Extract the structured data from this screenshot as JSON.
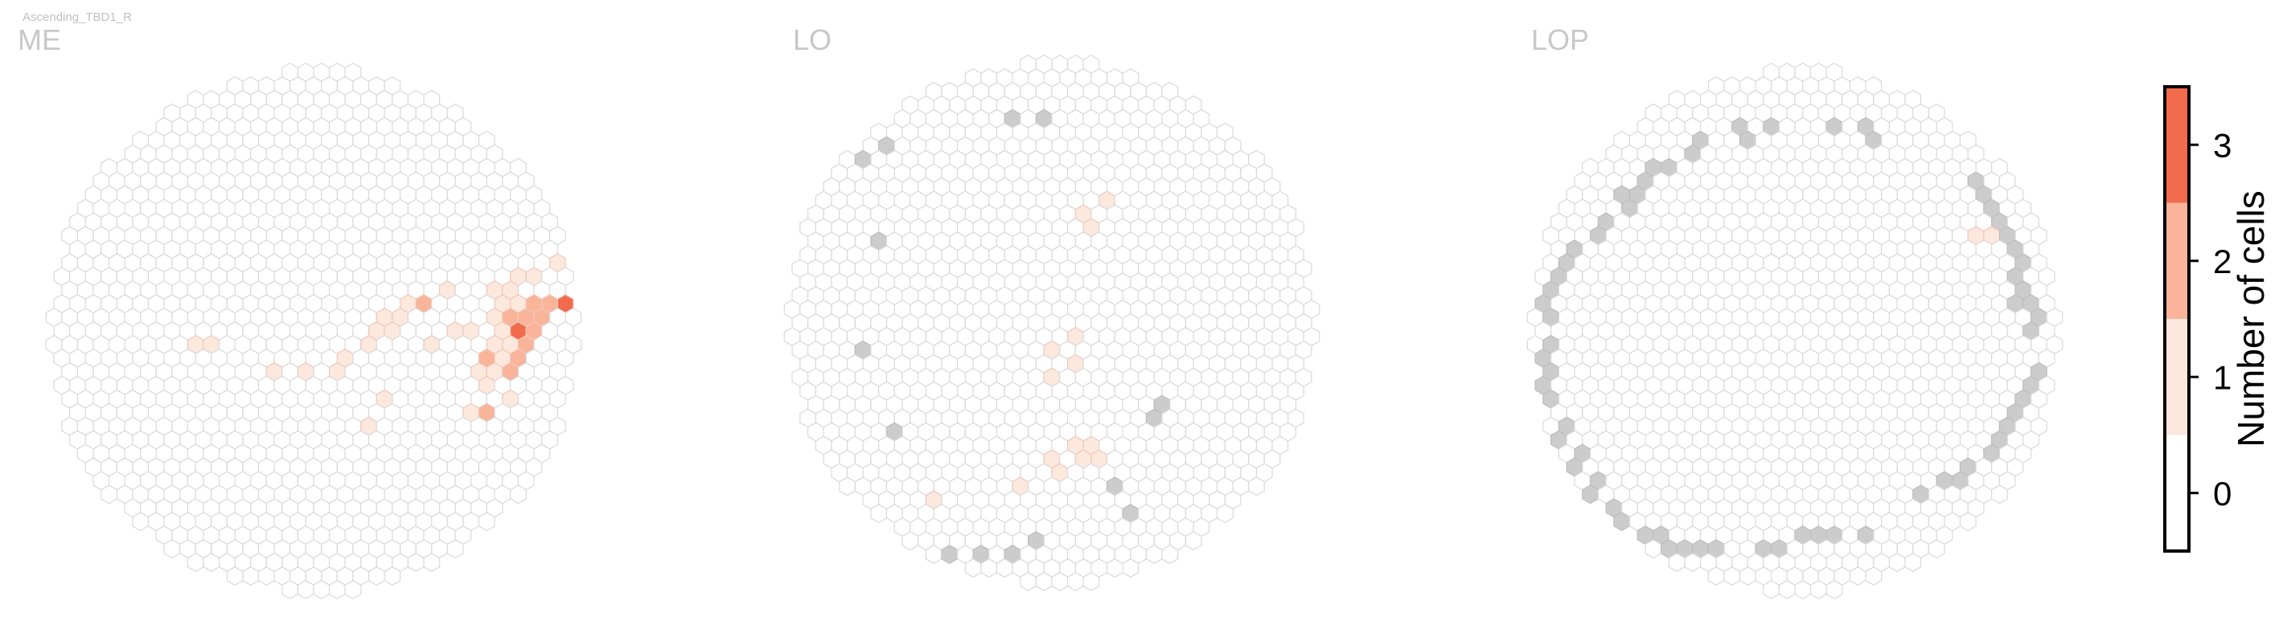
{
  "figure": {
    "top_label": "Ascending_TBD1_R"
  },
  "chart_data": {
    "type": "heatmap",
    "description_note": "",
    "panels": [
      {
        "name": "ME",
        "cells": [
          [
            11,
            4,
            1
          ],
          [
            11,
            3,
            1
          ],
          [
            11,
            2,
            1
          ],
          [
            12,
            3,
            1
          ],
          [
            12,
            2,
            1
          ],
          [
            12,
            1,
            1
          ],
          [
            13,
            2,
            2
          ],
          [
            13,
            1,
            2
          ],
          [
            13,
            0,
            3
          ],
          [
            14,
            0,
            2
          ],
          [
            14,
            -1,
            2
          ],
          [
            15,
            -2,
            1
          ],
          [
            16,
            -2,
            2
          ],
          [
            16,
            -3,
            2
          ],
          [
            17,
            -4,
            2
          ],
          [
            18,
            -4,
            2
          ],
          [
            18,
            -5,
            2
          ],
          [
            18,
            -6,
            2
          ],
          [
            17,
            -6,
            2
          ],
          [
            16,
            -5,
            1
          ],
          [
            15,
            -5,
            1
          ],
          [
            14,
            -4,
            1
          ],
          [
            13,
            -4,
            1
          ],
          [
            12,
            -3,
            1
          ],
          [
            11,
            -3,
            1
          ],
          [
            8,
            -3,
            1
          ],
          [
            7,
            -2,
            2
          ],
          [
            6,
            -2,
            1
          ],
          [
            5,
            -1,
            1
          ],
          [
            4,
            -1,
            1
          ],
          [
            4,
            0,
            1
          ],
          [
            5,
            0,
            1
          ],
          [
            3,
            1,
            1
          ],
          [
            7,
            1,
            1
          ],
          [
            9,
            0,
            1
          ],
          [
            10,
            0,
            1
          ],
          [
            11,
            -1,
            1
          ],
          [
            12,
            -1,
            2
          ],
          [
            12,
            0,
            1
          ],
          [
            13,
            -1,
            2
          ],
          [
            14,
            -2,
            2
          ],
          [
            15,
            -2,
            2
          ],
          [
            16,
            -2,
            3
          ],
          [
            13,
            -2,
            1
          ],
          [
            12,
            -2,
            1
          ],
          [
            2,
            2,
            1
          ],
          [
            1,
            3,
            1
          ],
          [
            -1,
            3,
            1
          ],
          [
            -7,
            1,
            1
          ],
          [
            -8,
            1,
            1
          ],
          [
            -3,
            3,
            1
          ],
          [
            11,
            1,
            1
          ],
          [
            11,
            2,
            2
          ],
          [
            10,
            3,
            1
          ],
          [
            12,
            3,
            2
          ],
          [
            4,
            5,
            1
          ],
          [
            10,
            6,
            1
          ],
          [
            11,
            6,
            2
          ],
          [
            12,
            5,
            1
          ],
          [
            3,
            7,
            1
          ]
        ]
      },
      {
        "name": "LO",
        "cells": [
          [
            2,
            -8,
            1
          ],
          [
            2,
            -7,
            1
          ],
          [
            3,
            -9,
            1
          ],
          [
            1,
            1,
            1
          ],
          [
            0,
            2,
            1
          ],
          [
            0,
            4,
            1
          ],
          [
            1,
            3,
            1
          ],
          [
            -2,
            12,
            1
          ],
          [
            0,
            10,
            1
          ],
          [
            0,
            11,
            1
          ],
          [
            1,
            9,
            1
          ],
          [
            2,
            9,
            1
          ],
          [
            2,
            10,
            1
          ],
          [
            3,
            10,
            1
          ],
          [
            -8,
            13,
            1
          ]
        ],
        "missing": [
          [
            -3,
            -15,
            null
          ],
          [
            -1,
            -15,
            null
          ],
          [
            -11,
            -13,
            null
          ],
          [
            -12,
            -12,
            null
          ],
          [
            -11,
            -6,
            null
          ],
          [
            -12,
            2,
            null
          ],
          [
            -10,
            8,
            null
          ],
          [
            4,
            12,
            null
          ],
          [
            -1,
            16,
            null
          ],
          [
            -3,
            17,
            null
          ],
          [
            -5,
            17,
            null
          ],
          [
            -7,
            17,
            null
          ],
          [
            -9,
            17,
            null
          ],
          [
            -11,
            17,
            null
          ],
          [
            5,
            14,
            null
          ],
          [
            6,
            7,
            null
          ],
          [
            7,
            6,
            null
          ]
        ]
      },
      {
        "name": "LOP",
        "cells": [
          [
            11,
            -7,
            1
          ],
          [
            12,
            -7,
            1
          ]
        ],
        "missing": [
          [
            -4,
            -15,
            null
          ],
          [
            -2,
            -15,
            null
          ],
          [
            2,
            -15,
            null
          ],
          [
            4,
            -15,
            null
          ],
          [
            5,
            -14,
            null
          ],
          [
            -3,
            -14,
            null
          ],
          [
            -6,
            -14,
            null
          ],
          [
            -7,
            -13,
            null
          ],
          [
            -8,
            -12,
            null
          ],
          [
            -9,
            -12,
            null
          ],
          [
            -10,
            -11,
            null
          ],
          [
            -10,
            -10,
            null
          ],
          [
            -11,
            -10,
            null
          ],
          [
            -11,
            -9,
            null
          ],
          [
            -12,
            -8,
            null
          ],
          [
            -13,
            -7,
            null
          ],
          [
            -14,
            -6,
            null
          ],
          [
            -15,
            -5,
            null
          ],
          [
            -15,
            -4,
            null
          ],
          [
            -16,
            -3,
            null
          ],
          [
            -16,
            -2,
            null
          ],
          [
            -16,
            -1,
            null
          ],
          [
            -17,
            0,
            null
          ],
          [
            -16,
            1,
            null
          ],
          [
            -16,
            2,
            null
          ],
          [
            -16,
            3,
            null
          ],
          [
            -16,
            4,
            null
          ],
          [
            -16,
            5,
            null
          ],
          [
            -16,
            6,
            null
          ],
          [
            -15,
            7,
            null
          ],
          [
            -15,
            8,
            null
          ],
          [
            -14,
            9,
            null
          ],
          [
            -14,
            10,
            null
          ],
          [
            -13,
            11,
            null
          ],
          [
            -13,
            12,
            null
          ],
          [
            -12,
            13,
            null
          ],
          [
            -11,
            14,
            null
          ],
          [
            -10,
            15,
            null
          ],
          [
            -9,
            15,
            null
          ],
          [
            -8,
            16,
            null
          ],
          [
            -7,
            16,
            null
          ],
          [
            -6,
            16,
            null
          ],
          [
            -5,
            16,
            null
          ],
          [
            -2,
            16,
            null
          ],
          [
            -1,
            16,
            null
          ],
          [
            0,
            15,
            null
          ],
          [
            1,
            15,
            null
          ],
          [
            2,
            15,
            null
          ],
          [
            4,
            15,
            null
          ],
          [
            8,
            12,
            null
          ],
          [
            9,
            11,
            null
          ],
          [
            10,
            11,
            null
          ],
          [
            11,
            10,
            null
          ],
          [
            12,
            9,
            null
          ],
          [
            13,
            8,
            null
          ],
          [
            13,
            7,
            null
          ],
          [
            14,
            6,
            null
          ],
          [
            14,
            5,
            null
          ],
          [
            15,
            4,
            null
          ],
          [
            15,
            3,
            null
          ],
          [
            14,
            -2,
            null
          ],
          [
            14,
            -3,
            null
          ],
          [
            14,
            -4,
            null
          ],
          [
            14,
            -5,
            null
          ],
          [
            14,
            -6,
            null
          ],
          [
            13,
            -7,
            null
          ],
          [
            13,
            -8,
            null
          ],
          [
            12,
            -9,
            null
          ],
          [
            12,
            -10,
            null
          ],
          [
            11,
            -11,
            null
          ],
          [
            15,
            -1,
            null
          ],
          [
            15,
            -2,
            null
          ],
          [
            15,
            0,
            null
          ]
        ]
      }
    ],
    "colorbar": {
      "label": "Number of cells",
      "ticks": [
        "0",
        "1",
        "2",
        "3"
      ],
      "levels": [
        {
          "value": 0,
          "color": "#ffffff"
        },
        {
          "value": 1,
          "color": "#fde8dd"
        },
        {
          "value": 2,
          "color": "#f9b49a"
        },
        {
          "value": 3,
          "color": "#f26b4d"
        }
      ]
    },
    "colors": {
      "empty_fill": "#ffffff",
      "empty_stroke": "#d9d9d9",
      "missing_fill": "#cccccc",
      "label_color": "#c8c8c8",
      "top_label_color": "#c0c0c0"
    }
  }
}
